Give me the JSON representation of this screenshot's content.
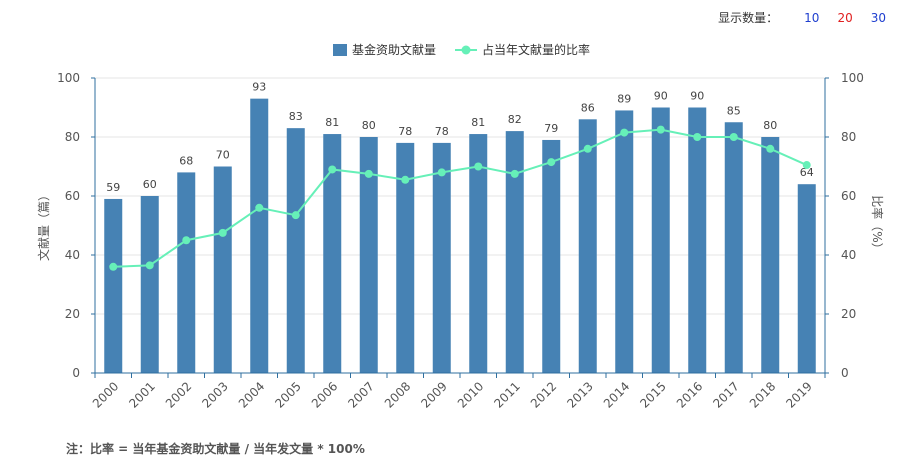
{
  "controls": {
    "display_count_label": "显示数量：",
    "options": [
      {
        "label": "10",
        "color": "#1f3fcf"
      },
      {
        "label": "20",
        "color": "#e02020"
      },
      {
        "label": "30",
        "color": "#1f3fcf"
      }
    ]
  },
  "note": "注：比率 = 当年基金资助文献量 / 当年发文量 * 100%",
  "colors": {
    "bar": "#4682b4",
    "line": "#66f0b8",
    "axis": "#2f6f9f",
    "grid": "#e6e6e6"
  },
  "chart_data": {
    "type": "bar",
    "categories": [
      "2000",
      "2001",
      "2002",
      "2003",
      "2004",
      "2005",
      "2006",
      "2007",
      "2008",
      "2009",
      "2010",
      "2011",
      "2012",
      "2013",
      "2014",
      "2015",
      "2016",
      "2017",
      "2018",
      "2019"
    ],
    "series": [
      {
        "name": "基金资助文献量",
        "type": "bar",
        "values": [
          59,
          60,
          68,
          70,
          93,
          83,
          81,
          80,
          78,
          78,
          81,
          82,
          79,
          86,
          89,
          90,
          90,
          85,
          80,
          64
        ]
      },
      {
        "name": "占当年文献量的比率",
        "type": "line",
        "values": [
          36,
          36.5,
          45,
          47.5,
          56,
          53.5,
          69,
          67.5,
          65.5,
          68,
          70,
          67.5,
          71.5,
          76,
          81.5,
          82.5,
          80,
          80,
          76,
          70.5
        ]
      }
    ],
    "ylabel": "文献量（篇）",
    "y2label": "比率（%）",
    "ylim": [
      0,
      100
    ],
    "y2lim": [
      0,
      100
    ],
    "yticks": [
      0,
      20,
      40,
      60,
      80,
      100
    ],
    "y2ticks": [
      0,
      20,
      40,
      60,
      80,
      100
    ],
    "legend_position": "top-center",
    "grid": true
  }
}
